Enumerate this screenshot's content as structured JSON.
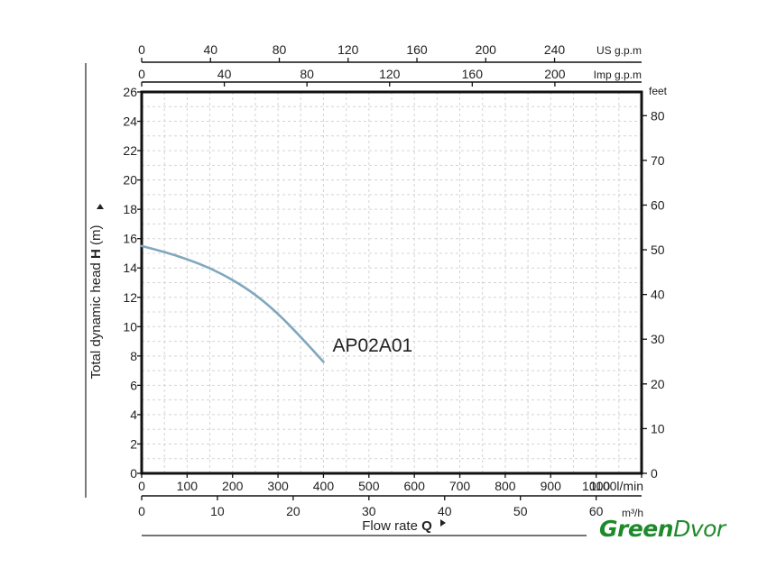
{
  "chart_data": {
    "type": "line",
    "xlabel": "Flow rate",
    "xlabel_symbol": "Q",
    "ylabel": "Total dynamic head",
    "ylabel_symbol": "H",
    "ylabel_unit": "(m)",
    "xlim": [
      0,
      1100
    ],
    "ylim": [
      0,
      26
    ],
    "grid": true,
    "x_axes": [
      {
        "unit": "l/min",
        "ticks": [
          0,
          100,
          200,
          300,
          400,
          500,
          600,
          700,
          800,
          900,
          1000,
          1100
        ]
      },
      {
        "unit": "m³/h",
        "ticks": [
          0,
          10,
          20,
          30,
          40,
          50,
          60
        ]
      },
      {
        "unit": "US g.p.m",
        "ticks": [
          0,
          40,
          80,
          120,
          160,
          200,
          240
        ]
      },
      {
        "unit": "Imp g.p.m",
        "ticks": [
          0,
          40,
          80,
          120,
          160,
          200
        ]
      }
    ],
    "y_axes": [
      {
        "unit": "m",
        "ticks": [
          0,
          2,
          4,
          6,
          8,
          10,
          12,
          14,
          16,
          18,
          20,
          22,
          24,
          26
        ]
      },
      {
        "unit": "feet",
        "ticks": [
          0,
          10,
          20,
          30,
          40,
          50,
          60,
          70,
          80
        ]
      }
    ],
    "series": [
      {
        "name": "AP02A01",
        "color": "#7fa8bd",
        "x": [
          0,
          50,
          100,
          150,
          200,
          250,
          300,
          350,
          400
        ],
        "y": [
          15.5,
          15.1,
          14.6,
          14.0,
          13.2,
          12.2,
          10.9,
          9.3,
          7.6
        ]
      }
    ]
  },
  "brand": {
    "part1": "Green",
    "part2": "Dvor",
    "color": "#1f8a2c"
  }
}
